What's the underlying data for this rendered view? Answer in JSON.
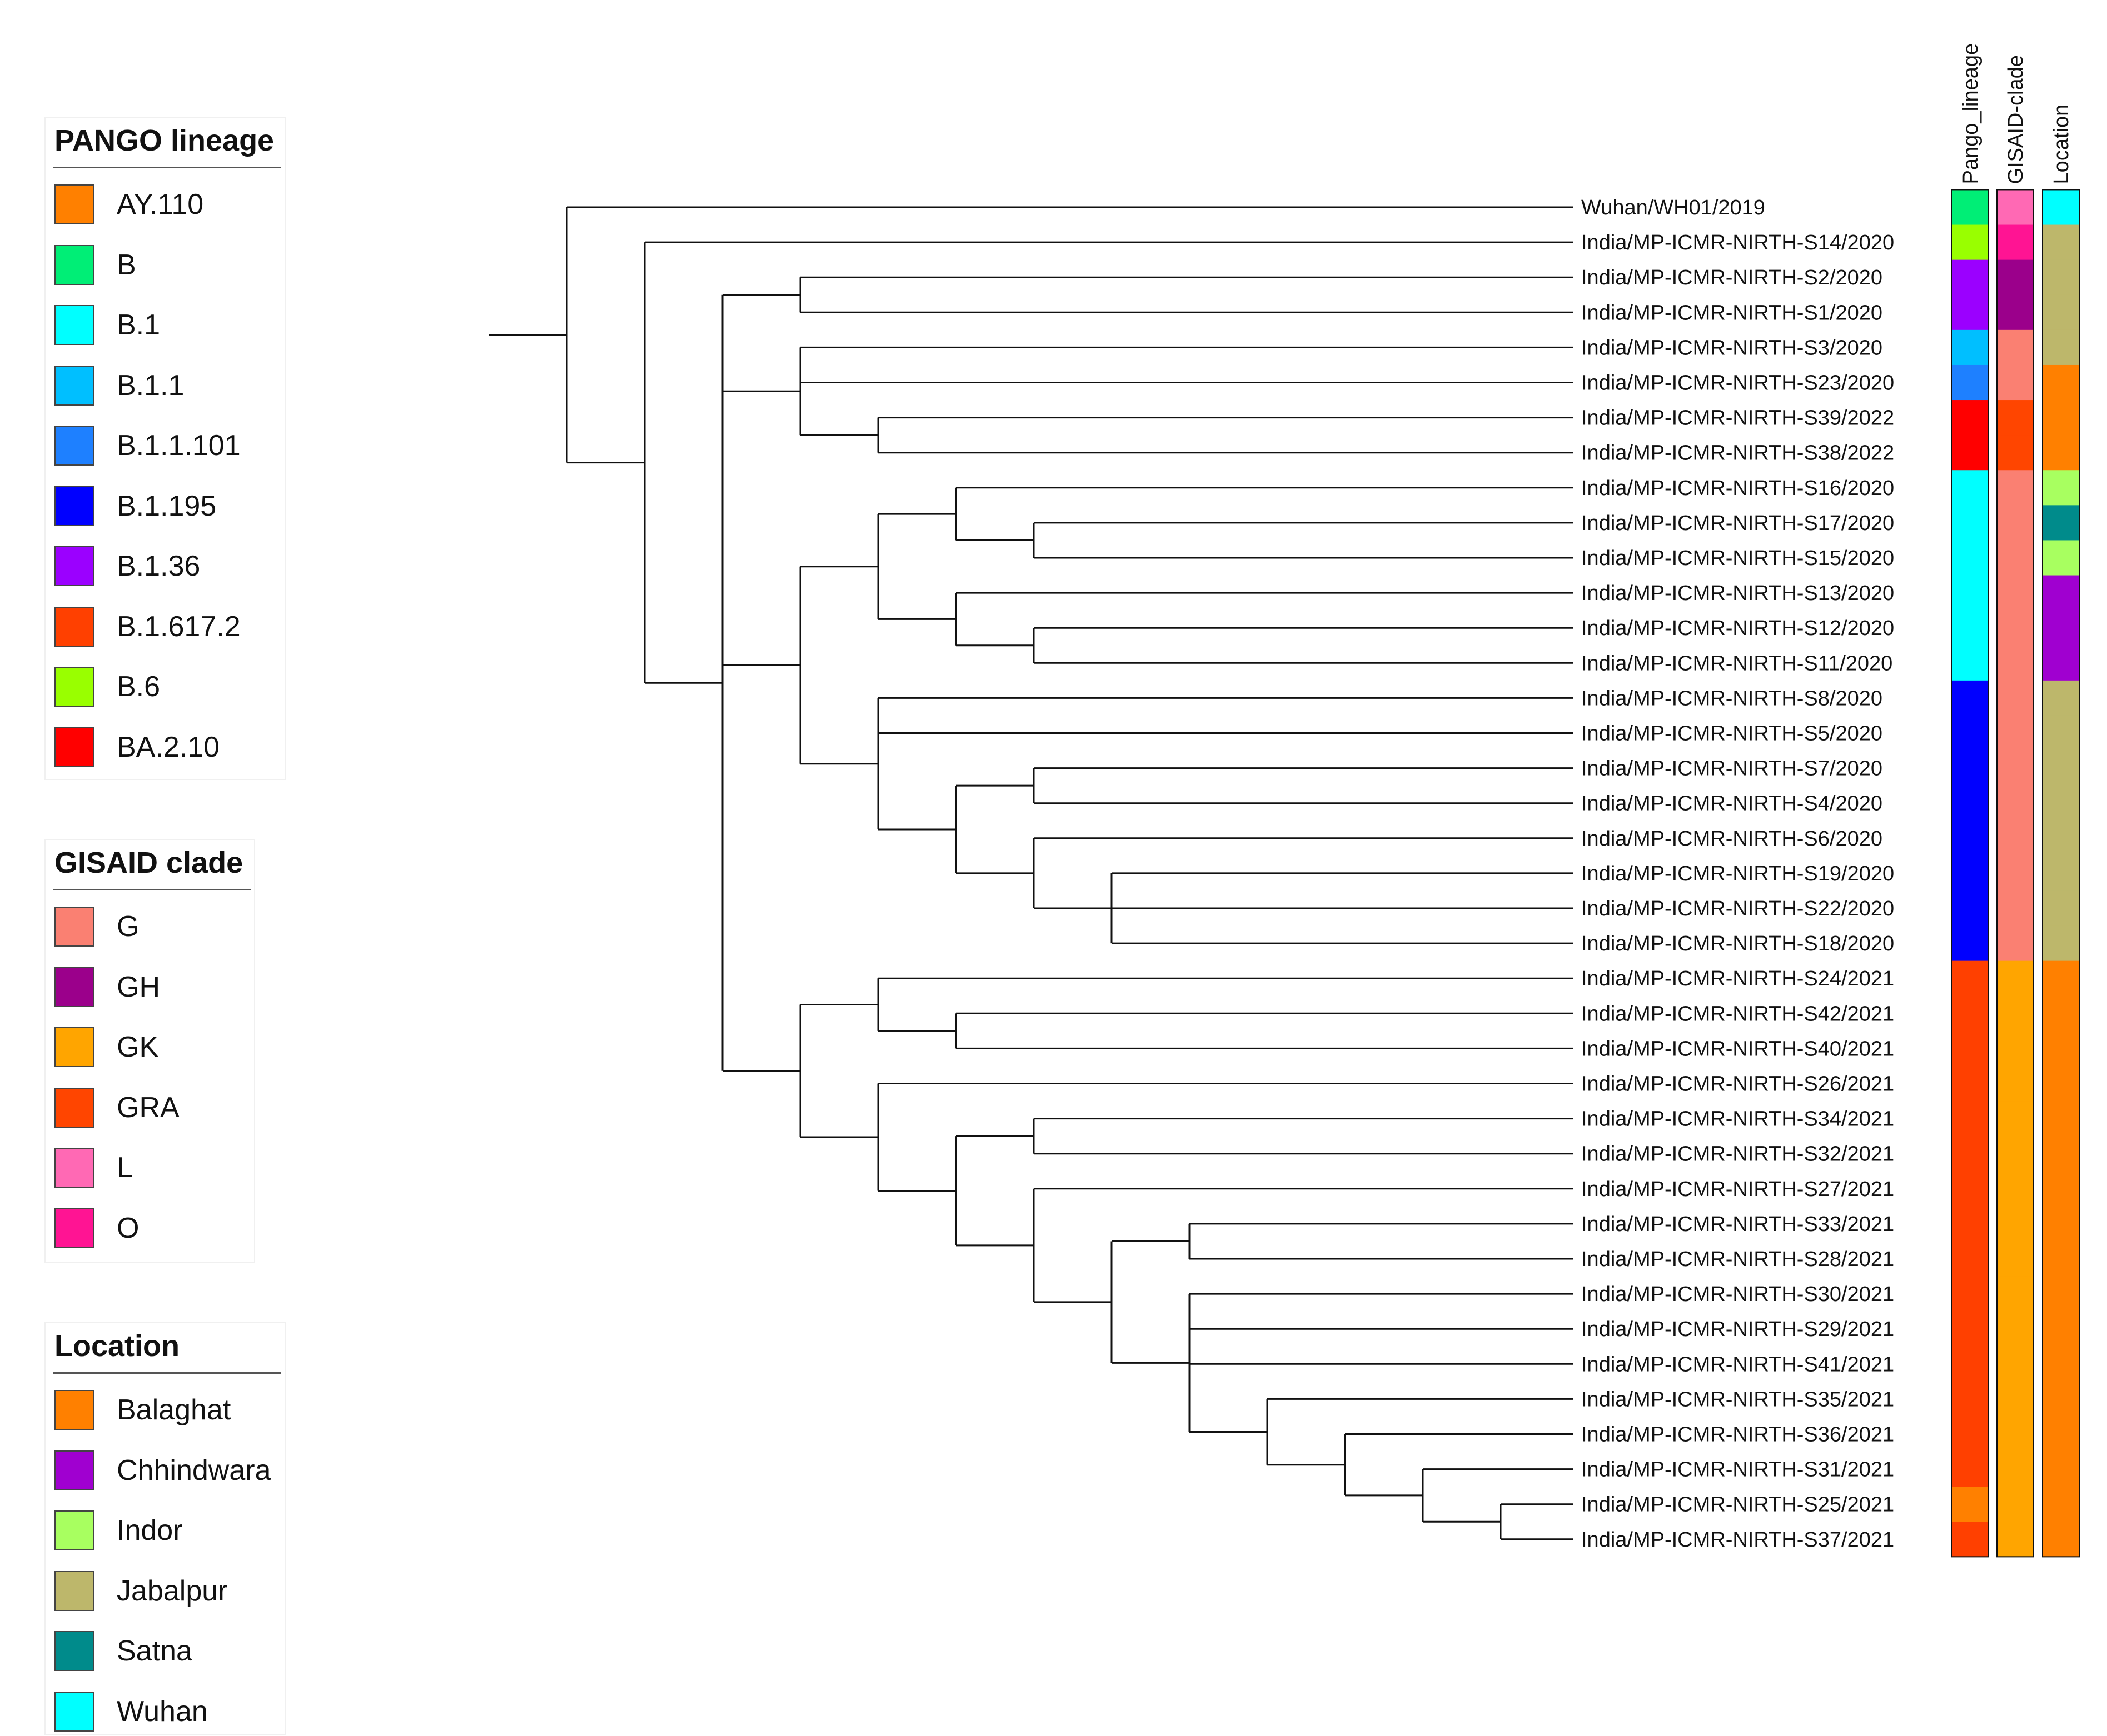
{
  "legends": {
    "pango": {
      "title": "PANGO lineage",
      "items": [
        {
          "label": "AY.110",
          "color": "#ff8000"
        },
        {
          "label": "B",
          "color": "#00ee76"
        },
        {
          "label": "B.1",
          "color": "#00ffff"
        },
        {
          "label": "B.1.1",
          "color": "#00bfff"
        },
        {
          "label": "B.1.1.101",
          "color": "#1e80ff"
        },
        {
          "label": "B.1.195",
          "color": "#0000ff"
        },
        {
          "label": "B.1.36",
          "color": "#9b00ff"
        },
        {
          "label": "B.1.617.2",
          "color": "#ff4000"
        },
        {
          "label": "B.6",
          "color": "#99ff00"
        },
        {
          "label": "BA.2.10",
          "color": "#ff0000"
        }
      ]
    },
    "gisaid": {
      "title": "GISAID clade",
      "items": [
        {
          "label": "G",
          "color": "#fa8072"
        },
        {
          "label": "GH",
          "color": "#9b008b"
        },
        {
          "label": "GK",
          "color": "#ffa500"
        },
        {
          "label": "GRA",
          "color": "#ff4500"
        },
        {
          "label": "L",
          "color": "#ff69b4"
        },
        {
          "label": "O",
          "color": "#ff1493"
        }
      ]
    },
    "location": {
      "title": "Location",
      "items": [
        {
          "label": "Balaghat",
          "color": "#ff8000"
        },
        {
          "label": "Chhindwara",
          "color": "#a000d0"
        },
        {
          "label": "Indor",
          "color": "#a8ff60"
        },
        {
          "label": "Jabalpur",
          "color": "#bdb76b"
        },
        {
          "label": "Satna",
          "color": "#008b8b"
        },
        {
          "label": "Wuhan",
          "color": "#00ffff"
        }
      ]
    }
  },
  "annotation_columns": [
    "Pango_lineage",
    "GISAID-clade",
    "Location"
  ],
  "tips": [
    {
      "label": "Wuhan/WH01/2019",
      "pango": "B",
      "clade": "L",
      "location": "Wuhan"
    },
    {
      "label": "India/MP-ICMR-NIRTH-S14/2020",
      "pango": "B.6",
      "clade": "O",
      "location": "Jabalpur"
    },
    {
      "label": "India/MP-ICMR-NIRTH-S2/2020",
      "pango": "B.1.36",
      "clade": "GH",
      "location": "Jabalpur"
    },
    {
      "label": "India/MP-ICMR-NIRTH-S1/2020",
      "pango": "B.1.36",
      "clade": "GH",
      "location": "Jabalpur"
    },
    {
      "label": "India/MP-ICMR-NIRTH-S3/2020",
      "pango": "B.1.1",
      "clade": "G",
      "location": "Jabalpur"
    },
    {
      "label": "India/MP-ICMR-NIRTH-S23/2020",
      "pango": "B.1.1.101",
      "clade": "G",
      "location": "Balaghat"
    },
    {
      "label": "India/MP-ICMR-NIRTH-S39/2022",
      "pango": "BA.2.10",
      "clade": "GRA",
      "location": "Balaghat"
    },
    {
      "label": "India/MP-ICMR-NIRTH-S38/2022",
      "pango": "BA.2.10",
      "clade": "GRA",
      "location": "Balaghat"
    },
    {
      "label": "India/MP-ICMR-NIRTH-S16/2020",
      "pango": "B.1",
      "clade": "G",
      "location": "Indor"
    },
    {
      "label": "India/MP-ICMR-NIRTH-S17/2020",
      "pango": "B.1",
      "clade": "G",
      "location": "Satna"
    },
    {
      "label": "India/MP-ICMR-NIRTH-S15/2020",
      "pango": "B.1",
      "clade": "G",
      "location": "Indor"
    },
    {
      "label": "India/MP-ICMR-NIRTH-S13/2020",
      "pango": "B.1",
      "clade": "G",
      "location": "Chhindwara"
    },
    {
      "label": "India/MP-ICMR-NIRTH-S12/2020",
      "pango": "B.1",
      "clade": "G",
      "location": "Chhindwara"
    },
    {
      "label": "India/MP-ICMR-NIRTH-S11/2020",
      "pango": "B.1",
      "clade": "G",
      "location": "Chhindwara"
    },
    {
      "label": "India/MP-ICMR-NIRTH-S8/2020",
      "pango": "B.1.195",
      "clade": "G",
      "location": "Jabalpur"
    },
    {
      "label": "India/MP-ICMR-NIRTH-S5/2020",
      "pango": "B.1.195",
      "clade": "G",
      "location": "Jabalpur"
    },
    {
      "label": "India/MP-ICMR-NIRTH-S7/2020",
      "pango": "B.1.195",
      "clade": "G",
      "location": "Jabalpur"
    },
    {
      "label": "India/MP-ICMR-NIRTH-S4/2020",
      "pango": "B.1.195",
      "clade": "G",
      "location": "Jabalpur"
    },
    {
      "label": "India/MP-ICMR-NIRTH-S6/2020",
      "pango": "B.1.195",
      "clade": "G",
      "location": "Jabalpur"
    },
    {
      "label": "India/MP-ICMR-NIRTH-S19/2020",
      "pango": "B.1.195",
      "clade": "G",
      "location": "Jabalpur"
    },
    {
      "label": "India/MP-ICMR-NIRTH-S22/2020",
      "pango": "B.1.195",
      "clade": "G",
      "location": "Jabalpur"
    },
    {
      "label": "India/MP-ICMR-NIRTH-S18/2020",
      "pango": "B.1.195",
      "clade": "G",
      "location": "Jabalpur"
    },
    {
      "label": "India/MP-ICMR-NIRTH-S24/2021",
      "pango": "B.1.617.2",
      "clade": "GK",
      "location": "Balaghat"
    },
    {
      "label": "India/MP-ICMR-NIRTH-S42/2021",
      "pango": "B.1.617.2",
      "clade": "GK",
      "location": "Balaghat"
    },
    {
      "label": "India/MP-ICMR-NIRTH-S40/2021",
      "pango": "B.1.617.2",
      "clade": "GK",
      "location": "Balaghat"
    },
    {
      "label": "India/MP-ICMR-NIRTH-S26/2021",
      "pango": "B.1.617.2",
      "clade": "GK",
      "location": "Balaghat"
    },
    {
      "label": "India/MP-ICMR-NIRTH-S34/2021",
      "pango": "B.1.617.2",
      "clade": "GK",
      "location": "Balaghat"
    },
    {
      "label": "India/MP-ICMR-NIRTH-S32/2021",
      "pango": "B.1.617.2",
      "clade": "GK",
      "location": "Balaghat"
    },
    {
      "label": "India/MP-ICMR-NIRTH-S27/2021",
      "pango": "B.1.617.2",
      "clade": "GK",
      "location": "Balaghat"
    },
    {
      "label": "India/MP-ICMR-NIRTH-S33/2021",
      "pango": "B.1.617.2",
      "clade": "GK",
      "location": "Balaghat"
    },
    {
      "label": "India/MP-ICMR-NIRTH-S28/2021",
      "pango": "B.1.617.2",
      "clade": "GK",
      "location": "Balaghat"
    },
    {
      "label": "India/MP-ICMR-NIRTH-S30/2021",
      "pango": "B.1.617.2",
      "clade": "GK",
      "location": "Balaghat"
    },
    {
      "label": "India/MP-ICMR-NIRTH-S29/2021",
      "pango": "B.1.617.2",
      "clade": "GK",
      "location": "Balaghat"
    },
    {
      "label": "India/MP-ICMR-NIRTH-S41/2021",
      "pango": "B.1.617.2",
      "clade": "GK",
      "location": "Balaghat"
    },
    {
      "label": "India/MP-ICMR-NIRTH-S35/2021",
      "pango": "B.1.617.2",
      "clade": "GK",
      "location": "Balaghat"
    },
    {
      "label": "India/MP-ICMR-NIRTH-S36/2021",
      "pango": "B.1.617.2",
      "clade": "GK",
      "location": "Balaghat"
    },
    {
      "label": "India/MP-ICMR-NIRTH-S31/2021",
      "pango": "B.1.617.2",
      "clade": "GK",
      "location": "Balaghat"
    },
    {
      "label": "India/MP-ICMR-NIRTH-S25/2021",
      "pango": "AY.110",
      "clade": "GK",
      "location": "Balaghat"
    },
    {
      "label": "India/MP-ICMR-NIRTH-S37/2021",
      "pango": "B.1.617.2",
      "clade": "GK",
      "location": "Balaghat"
    }
  ],
  "tree": {
    "children": [
      {
        "tip": 0
      },
      {
        "children": [
          {
            "tip": 1
          },
          {
            "children": [
              {
                "children": [
                  {
                    "tip": 2
                  },
                  {
                    "tip": 3
                  }
                ]
              },
              {
                "children": [
                  {
                    "tip": 4
                  },
                  {
                    "tip": 5
                  },
                  {
                    "children": [
                      {
                        "tip": 6
                      },
                      {
                        "tip": 7
                      }
                    ]
                  }
                ]
              },
              {
                "children": [
                  {
                    "children": [
                      {
                        "children": [
                          {
                            "tip": 8
                          },
                          {
                            "children": [
                              {
                                "tip": 9
                              },
                              {
                                "tip": 10
                              }
                            ]
                          }
                        ]
                      },
                      {
                        "children": [
                          {
                            "tip": 11
                          },
                          {
                            "children": [
                              {
                                "tip": 12
                              },
                              {
                                "tip": 13
                              }
                            ]
                          }
                        ]
                      }
                    ]
                  },
                  {
                    "children": [
                      {
                        "tip": 14
                      },
                      {
                        "tip": 15
                      },
                      {
                        "children": [
                          {
                            "children": [
                              {
                                "tip": 16
                              },
                              {
                                "tip": 17
                              }
                            ]
                          },
                          {
                            "children": [
                              {
                                "tip": 18
                              },
                              {
                                "children": [
                                  {
                                    "tip": 19
                                  },
                                  {
                                    "tip": 20
                                  },
                                  {
                                    "tip": 21
                                  }
                                ]
                              }
                            ]
                          }
                        ]
                      }
                    ]
                  }
                ]
              },
              {
                "children": [
                  {
                    "children": [
                      {
                        "tip": 22
                      },
                      {
                        "children": [
                          {
                            "tip": 23
                          },
                          {
                            "tip": 24
                          }
                        ]
                      }
                    ]
                  },
                  {
                    "children": [
                      {
                        "tip": 25
                      },
                      {
                        "children": [
                          {
                            "children": [
                              {
                                "tip": 26
                              },
                              {
                                "tip": 27
                              }
                            ]
                          },
                          {
                            "children": [
                              {
                                "tip": 28
                              },
                              {
                                "children": [
                                  {
                                    "children": [
                                      {
                                        "tip": 29
                                      },
                                      {
                                        "tip": 30
                                      }
                                    ]
                                  },
                                  {
                                    "children": [
                                      {
                                        "tip": 31
                                      },
                                      {
                                        "tip": 32
                                      },
                                      {
                                        "tip": 33
                                      },
                                      {
                                        "children": [
                                          {
                                            "tip": 34
                                          },
                                          {
                                            "children": [
                                              {
                                                "tip": 35
                                              },
                                              {
                                                "children": [
                                                  {
                                                    "tip": 36
                                                  },
                                                  {
                                                    "children": [
                                                      {
                                                        "tip": 37
                                                      },
                                                      {
                                                        "tip": 38
                                                      }
                                                    ]
                                                  }
                                                ]
                                              }
                                            ]
                                          }
                                        ]
                                      }
                                    ]
                                  }
                                ]
                              }
                            ]
                          }
                        ]
                      }
                    ]
                  }
                ]
              }
            ]
          }
        ]
      }
    ]
  }
}
